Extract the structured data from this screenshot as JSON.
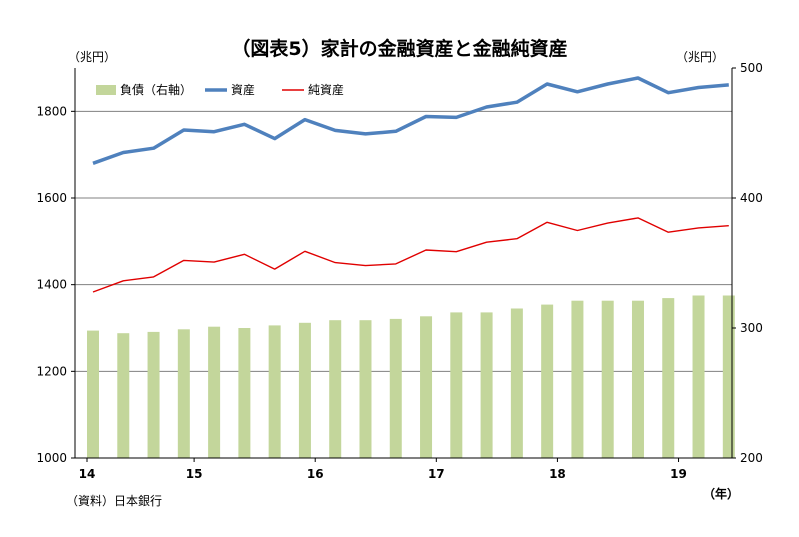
{
  "title": "（図表5）家計の金融資産と金融純資産",
  "source": "（資料）日本銀行",
  "chart_data": {
    "type": "bar+line",
    "title": "（図表5）家計の金融資産と金融純資産",
    "left_axis": {
      "unit_label": "（兆円）",
      "ylim": [
        1000,
        1900
      ],
      "ticks": [
        1000,
        1200,
        1400,
        1600,
        1800
      ]
    },
    "right_axis": {
      "unit_label": "（兆円）",
      "ylim": [
        200,
        500
      ],
      "ticks": [
        200,
        300,
        400,
        500
      ]
    },
    "x_axis": {
      "unit_label": "（年）",
      "year_labels": [
        "14",
        "15",
        "16",
        "17",
        "18",
        "19"
      ],
      "year_label_index": [
        0,
        4,
        8,
        12,
        16,
        20
      ]
    },
    "grid": true,
    "legend_position": "top-left",
    "series": [
      {
        "name": "負債（右軸）",
        "type": "bar",
        "axis": "right",
        "color": "#c3d69b",
        "values": [
          298,
          296,
          297,
          299,
          301,
          300,
          302,
          304,
          306,
          306,
          307,
          309,
          312,
          312,
          315,
          318,
          321,
          321,
          321,
          323,
          325,
          325
        ]
      },
      {
        "name": "資産",
        "type": "line",
        "axis": "left",
        "color": "#4f81bd",
        "values": [
          1680,
          1705,
          1715,
          1757,
          1753,
          1770,
          1737,
          1781,
          1756,
          1748,
          1754,
          1788,
          1786,
          1810,
          1821,
          1863,
          1845,
          1863,
          1877,
          1843,
          1855,
          1861
        ]
      },
      {
        "name": "純資産",
        "type": "line",
        "axis": "left",
        "color": "#e00000",
        "values": [
          1383,
          1409,
          1418,
          1456,
          1452,
          1470,
          1436,
          1477,
          1451,
          1444,
          1448,
          1480,
          1476,
          1498,
          1506,
          1544,
          1525,
          1542,
          1554,
          1521,
          1531,
          1536
        ]
      }
    ]
  }
}
